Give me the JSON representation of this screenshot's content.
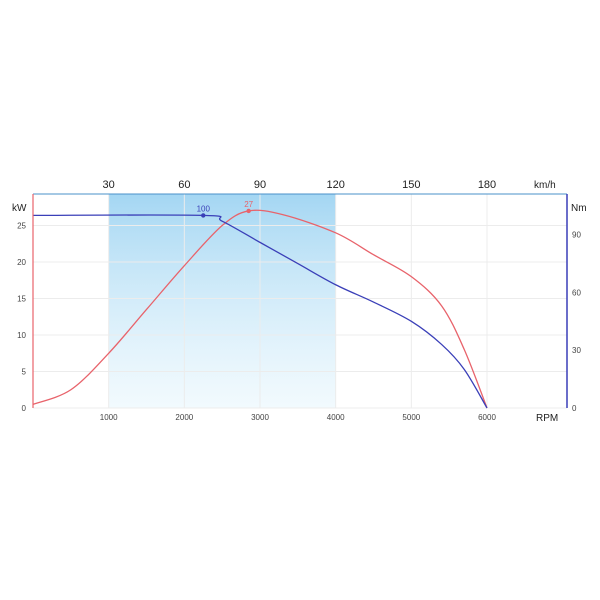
{
  "chart_data": {
    "type": "line",
    "x_label": "RPM",
    "x_ticks": [
      "1000",
      "2000",
      "3000",
      "4000",
      "5000",
      "6000"
    ],
    "x_range": [
      0,
      6000
    ],
    "top_axis_label": "km/h",
    "top_ticks": [
      "30",
      "60",
      "90",
      "120",
      "150",
      "180"
    ],
    "top_tick_rpm": [
      1000,
      2000,
      3000,
      4000,
      5000,
      6000
    ],
    "left_axis_label": "kW",
    "left_ticks": [
      "0",
      "5",
      "10",
      "15",
      "20",
      "25"
    ],
    "left_range": [
      0,
      28.5
    ],
    "right_axis_label": "Nm",
    "right_ticks": [
      "0",
      "30",
      "60",
      "90"
    ],
    "right_range": [
      0,
      108
    ],
    "highlight_band_rpm": [
      1000,
      4000
    ],
    "grid": true,
    "series": [
      {
        "axis": "left",
        "color": "#e8636b",
        "points": [
          [
            0,
            0.5
          ],
          [
            500,
            2.5
          ],
          [
            1000,
            7.5
          ],
          [
            1500,
            13.5
          ],
          [
            2000,
            19.5
          ],
          [
            2500,
            25
          ],
          [
            2850,
            27
          ],
          [
            3300,
            26.5
          ],
          [
            4000,
            24
          ],
          [
            4500,
            21
          ],
          [
            5000,
            18
          ],
          [
            5400,
            14
          ],
          [
            5700,
            8
          ],
          [
            6000,
            0
          ]
        ],
        "peak": {
          "x": 2850,
          "y": 27,
          "label": "27"
        }
      },
      {
        "axis": "right",
        "color": "#3a3fb8",
        "points": [
          [
            0,
            100
          ],
          [
            2250,
            100
          ],
          [
            2500,
            97
          ],
          [
            3000,
            86
          ],
          [
            3500,
            75
          ],
          [
            4000,
            64
          ],
          [
            4500,
            55
          ],
          [
            5000,
            45
          ],
          [
            5400,
            33
          ],
          [
            5700,
            20
          ],
          [
            6000,
            0
          ]
        ],
        "peak": {
          "x": 2250,
          "y": 100,
          "label": "100"
        }
      }
    ]
  }
}
